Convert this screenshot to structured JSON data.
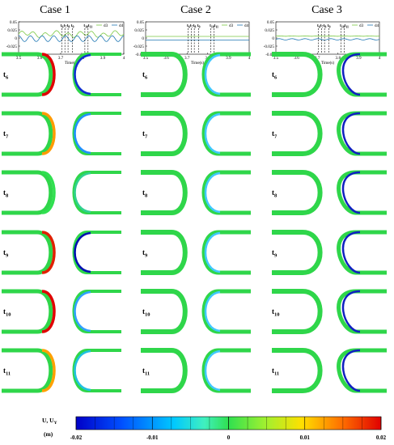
{
  "cases": [
    {
      "title": "Case 1",
      "time_markers": [
        "t6",
        "t7",
        "t8",
        "t9",
        "t10",
        "t11"
      ]
    },
    {
      "title": "Case 2",
      "time_markers": [
        "t6",
        "t7",
        "t8",
        "t9",
        "t10",
        "t11"
      ]
    },
    {
      "title": "Case 3",
      "time_markers": [
        "t6",
        "t7",
        "t8",
        "t9",
        "t10",
        "t11"
      ]
    }
  ],
  "plots": {
    "xlabel": "Time(s)",
    "xticks": [
      "3.5",
      "3.6",
      "3.7",
      "3.8",
      "3.9",
      "4"
    ],
    "yticks": [
      "0.05",
      "0.025",
      "0",
      "-0.025",
      "-0.05"
    ],
    "legend": [
      "d3",
      "d4"
    ],
    "colors": {
      "d3": "#7ac943",
      "d4": "#1f77b4"
    }
  },
  "rows": [
    {
      "main": "t",
      "sub": "6"
    },
    {
      "main": "t",
      "sub": "7"
    },
    {
      "main": "t",
      "sub": "8"
    },
    {
      "main": "t",
      "sub": "9"
    },
    {
      "main": "t",
      "sub": "10"
    },
    {
      "main": "t",
      "sub": "11"
    }
  ],
  "colorbar": {
    "label_main": "U, U",
    "label_sub": "Y",
    "unit": "(m)",
    "ticks": [
      "-0.02",
      "-0.01",
      "0",
      "0.01",
      "0.02"
    ],
    "colors": [
      "#0000c8",
      "#0050ff",
      "#00b4ff",
      "#40ffd0",
      "#30e060",
      "#a0ff30",
      "#ffd000",
      "#ff6000",
      "#e00000"
    ]
  }
}
